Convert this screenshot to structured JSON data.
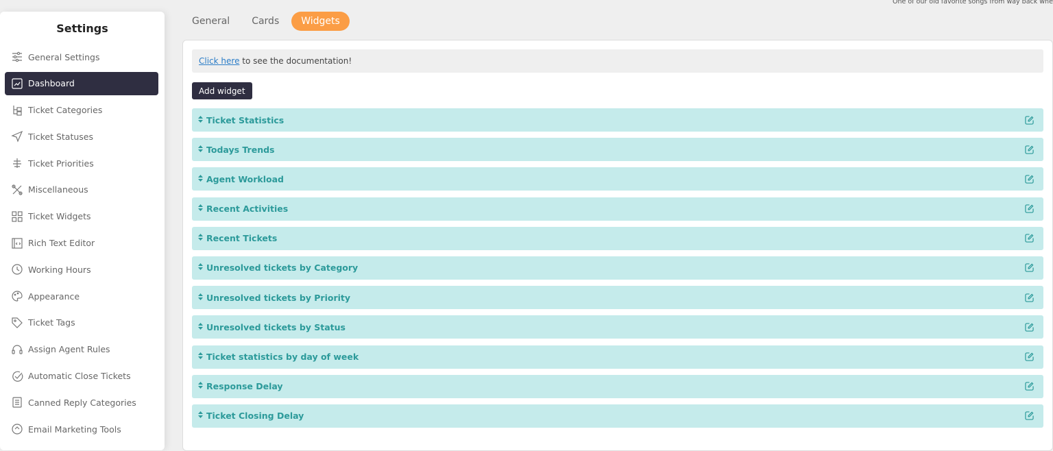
{
  "top_note": "One of our old favorite songs from way back whe",
  "sidebar": {
    "title": "Settings",
    "items": [
      {
        "label": "General Settings",
        "icon": "sliders-icon"
      },
      {
        "label": "Dashboard",
        "icon": "chart-icon",
        "active": true
      },
      {
        "label": "Ticket Categories",
        "icon": "hierarchy-icon"
      },
      {
        "label": "Ticket Statuses",
        "icon": "send-icon"
      },
      {
        "label": "Ticket Priorities",
        "icon": "priority-icon"
      },
      {
        "label": "Miscellaneous",
        "icon": "tools-icon"
      },
      {
        "label": "Ticket Widgets",
        "icon": "grid-icon"
      },
      {
        "label": "Rich Text Editor",
        "icon": "code-icon"
      },
      {
        "label": "Working Hours",
        "icon": "clock-icon"
      },
      {
        "label": "Appearance",
        "icon": "palette-icon"
      },
      {
        "label": "Ticket Tags",
        "icon": "tag-icon"
      },
      {
        "label": "Assign Agent Rules",
        "icon": "headset-icon"
      },
      {
        "label": "Automatic Close Tickets",
        "icon": "check-circle-icon"
      },
      {
        "label": "Canned Reply Categories",
        "icon": "document-icon"
      },
      {
        "label": "Email Marketing Tools",
        "icon": "email-icon"
      }
    ]
  },
  "tabs": [
    {
      "label": "General"
    },
    {
      "label": "Cards"
    },
    {
      "label": "Widgets",
      "active": true
    }
  ],
  "doc": {
    "link": "Click here",
    "text": " to see the documentation!"
  },
  "add_widget": "Add widget",
  "widgets": [
    "Ticket Statistics",
    "Todays Trends",
    "Agent Workload",
    "Recent Activities",
    "Recent Tickets",
    "Unresolved tickets by Category",
    "Unresolved tickets by Priority",
    "Unresolved tickets by Status",
    "Ticket statistics by day of week",
    "Response Delay",
    "Ticket Closing Delay"
  ],
  "colors": {
    "accent": "#fb9d45",
    "dark": "#2f2e41",
    "widget_bg": "#c5ebeb",
    "widget_text": "#2c9a9a"
  }
}
